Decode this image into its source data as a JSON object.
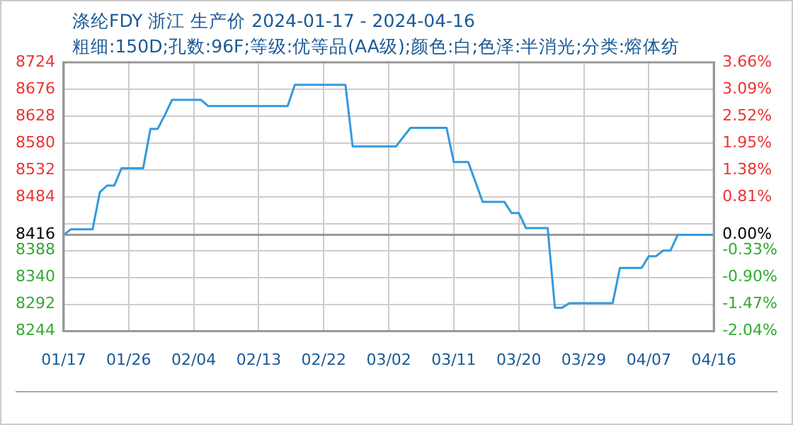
{
  "chart_data": {
    "type": "line",
    "title": "涤纶FDY 浙江 生产价 2024-01-17 - 2024-04-16",
    "subtitle": "粗细:150D;孔数:96F;等级:优等品(AA级);颜色:白;色泽:半消光;分类:熔体纺",
    "x": [
      "2024-01-17",
      "2024-01-18",
      "2024-01-21",
      "2024-01-22",
      "2024-01-23",
      "2024-01-24",
      "2024-01-25",
      "2024-01-28",
      "2024-01-29",
      "2024-01-30",
      "2024-01-31",
      "2024-02-01",
      "2024-02-05",
      "2024-02-06",
      "2024-02-17",
      "2024-02-18",
      "2024-02-25",
      "2024-02-26",
      "2024-03-03",
      "2024-03-05",
      "2024-03-10",
      "2024-03-11",
      "2024-03-13",
      "2024-03-15",
      "2024-03-18",
      "2024-03-19",
      "2024-03-20",
      "2024-03-21",
      "2024-03-24",
      "2024-03-25",
      "2024-03-26",
      "2024-03-27",
      "2024-04-02",
      "2024-04-03",
      "2024-04-06",
      "2024-04-07",
      "2024-04-08",
      "2024-04-09",
      "2024-04-10",
      "2024-04-11",
      "2024-04-16"
    ],
    "series": [
      {
        "color": "#3399dd",
        "values": [
          8416,
          8426,
          8426,
          8492,
          8504,
          8504,
          8535,
          8535,
          8605,
          8605,
          8630,
          8657,
          8657,
          8646,
          8646,
          8684,
          8684,
          8574,
          8574,
          8607,
          8607,
          8546,
          8546,
          8475,
          8475,
          8455,
          8455,
          8428,
          8428,
          8286,
          8286,
          8294,
          8294,
          8357,
          8357,
          8378,
          8378,
          8388,
          8388,
          8416,
          8416
        ]
      }
    ],
    "xlim": [
      "2024-01-17",
      "2024-04-16"
    ],
    "xticks": [
      {
        "value": "2024-01-17",
        "label": "01/17"
      },
      {
        "value": "2024-01-26",
        "label": "01/26"
      },
      {
        "value": "2024-02-04",
        "label": "02/04"
      },
      {
        "value": "2024-02-13",
        "label": "02/13"
      },
      {
        "value": "2024-02-22",
        "label": "02/22"
      },
      {
        "value": "2024-03-02",
        "label": "03/02"
      },
      {
        "value": "2024-03-11",
        "label": "03/11"
      },
      {
        "value": "2024-03-20",
        "label": "03/20"
      },
      {
        "value": "2024-03-29",
        "label": "03/29"
      },
      {
        "value": "2024-04-07",
        "label": "04/07"
      },
      {
        "value": "2024-04-16",
        "label": "04/16"
      }
    ],
    "ylim": [
      8244,
      8724
    ],
    "yticks": [
      8244,
      8292,
      8340,
      8388,
      8416,
      {
        "value": 8436,
        "label": null
      },
      8484,
      8532,
      8580,
      8628,
      8676,
      8724
    ],
    "y2lim": [
      -2.04,
      3.66
    ],
    "y2ticks": [
      {
        "value": -2.04,
        "label": "-2.04%"
      },
      {
        "value": -1.47,
        "label": "-1.47%"
      },
      {
        "value": -0.9,
        "label": "-0.90%"
      },
      {
        "value": -0.33,
        "label": "-0.33%"
      },
      {
        "value": 0,
        "label": "0.00%"
      },
      {
        "value": 0.81,
        "label": "0.81%"
      },
      {
        "value": 1.38,
        "label": "1.38%"
      },
      {
        "value": 1.95,
        "label": "1.95%"
      },
      {
        "value": 2.52,
        "label": "2.52%"
      },
      {
        "value": 3.09,
        "label": "3.09%"
      },
      {
        "value": 3.66,
        "label": "3.66%"
      }
    ],
    "ref_lines": [
      {
        "axis": "y",
        "value": 8416,
        "color": "#999999"
      }
    ],
    "grid": true,
    "legend": false,
    "marker": "none",
    "line_style": "solid"
  }
}
